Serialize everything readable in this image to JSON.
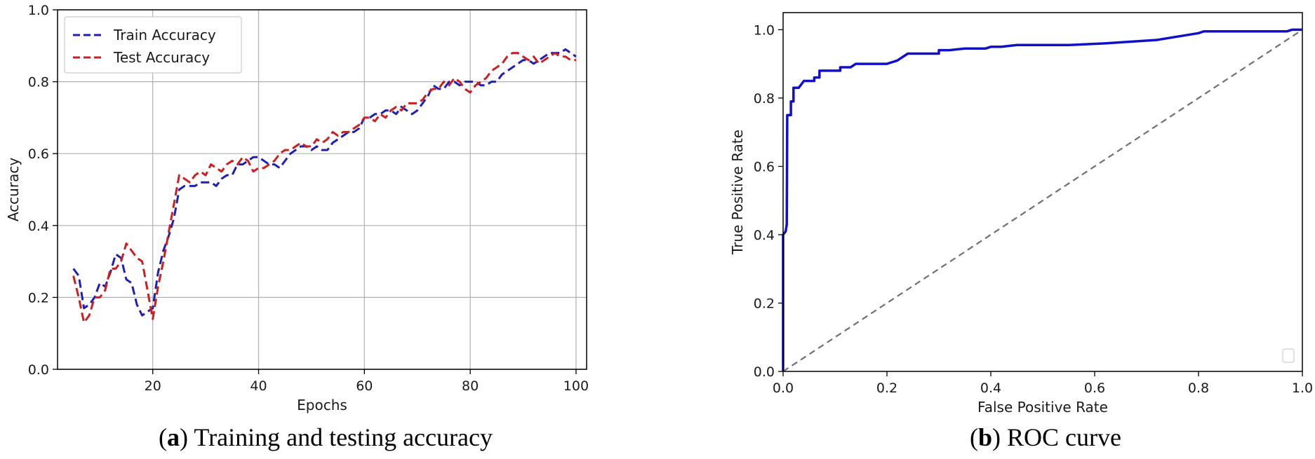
{
  "figure": {
    "caption_a": {
      "letter": "a",
      "text": " Training and testing accuracy"
    },
    "caption_b": {
      "letter": "b",
      "text": " ROC curve"
    }
  },
  "chart_data": [
    {
      "type": "line",
      "xlabel": "Epochs",
      "ylabel": "Accuracy",
      "xlim": [
        2,
        102
      ],
      "ylim": [
        0,
        1.0
      ],
      "xticks": [
        20,
        40,
        60,
        80,
        100
      ],
      "yticks": [
        0.0,
        0.2,
        0.4,
        0.6,
        0.8,
        1.0
      ],
      "grid": true,
      "legend": "top-left",
      "series": [
        {
          "name": "Train Accuracy",
          "color": "#1f1fb4",
          "style": "dashed",
          "points": [
            [
              5,
              0.28
            ],
            [
              6,
              0.26
            ],
            [
              7,
              0.17
            ],
            [
              8,
              0.18
            ],
            [
              9,
              0.2
            ],
            [
              10,
              0.24
            ],
            [
              11,
              0.23
            ],
            [
              12,
              0.27
            ],
            [
              13,
              0.32
            ],
            [
              14,
              0.31
            ],
            [
              15,
              0.25
            ],
            [
              16,
              0.24
            ],
            [
              17,
              0.18
            ],
            [
              18,
              0.15
            ],
            [
              19,
              0.16
            ],
            [
              20,
              0.17
            ],
            [
              21,
              0.27
            ],
            [
              22,
              0.33
            ],
            [
              23,
              0.37
            ],
            [
              24,
              0.42
            ],
            [
              25,
              0.5
            ],
            [
              26,
              0.51
            ],
            [
              27,
              0.51
            ],
            [
              28,
              0.51
            ],
            [
              29,
              0.52
            ],
            [
              30,
              0.52
            ],
            [
              31,
              0.52
            ],
            [
              32,
              0.51
            ],
            [
              33,
              0.53
            ],
            [
              34,
              0.54
            ],
            [
              35,
              0.54
            ],
            [
              36,
              0.57
            ],
            [
              37,
              0.57
            ],
            [
              38,
              0.58
            ],
            [
              39,
              0.59
            ],
            [
              40,
              0.59
            ],
            [
              41,
              0.58
            ],
            [
              42,
              0.57
            ],
            [
              43,
              0.57
            ],
            [
              44,
              0.56
            ],
            [
              45,
              0.58
            ],
            [
              46,
              0.6
            ],
            [
              47,
              0.61
            ],
            [
              48,
              0.62
            ],
            [
              49,
              0.62
            ],
            [
              50,
              0.61
            ],
            [
              51,
              0.62
            ],
            [
              52,
              0.61
            ],
            [
              53,
              0.61
            ],
            [
              54,
              0.63
            ],
            [
              55,
              0.64
            ],
            [
              56,
              0.65
            ],
            [
              57,
              0.66
            ],
            [
              58,
              0.66
            ],
            [
              59,
              0.67
            ],
            [
              60,
              0.7
            ],
            [
              61,
              0.7
            ],
            [
              62,
              0.71
            ],
            [
              63,
              0.71
            ],
            [
              64,
              0.72
            ],
            [
              65,
              0.72
            ],
            [
              66,
              0.71
            ],
            [
              67,
              0.73
            ],
            [
              68,
              0.72
            ],
            [
              69,
              0.71
            ],
            [
              70,
              0.72
            ],
            [
              71,
              0.74
            ],
            [
              72,
              0.76
            ],
            [
              73,
              0.79
            ],
            [
              74,
              0.78
            ],
            [
              75,
              0.78
            ],
            [
              76,
              0.8
            ],
            [
              77,
              0.8
            ],
            [
              78,
              0.79
            ],
            [
              79,
              0.8
            ],
            [
              80,
              0.8
            ],
            [
              81,
              0.8
            ],
            [
              82,
              0.79
            ],
            [
              83,
              0.79
            ],
            [
              84,
              0.8
            ],
            [
              85,
              0.8
            ],
            [
              86,
              0.82
            ],
            [
              87,
              0.83
            ],
            [
              88,
              0.84
            ],
            [
              89,
              0.85
            ],
            [
              90,
              0.86
            ],
            [
              91,
              0.86
            ],
            [
              92,
              0.85
            ],
            [
              93,
              0.86
            ],
            [
              94,
              0.87
            ],
            [
              95,
              0.88
            ],
            [
              96,
              0.88
            ],
            [
              97,
              0.88
            ],
            [
              98,
              0.89
            ],
            [
              99,
              0.88
            ],
            [
              100,
              0.87
            ]
          ]
        },
        {
          "name": "Test Accuracy",
          "color": "#cc1f1f",
          "style": "dashed",
          "points": [
            [
              5,
              0.26
            ],
            [
              6,
              0.2
            ],
            [
              7,
              0.13
            ],
            [
              8,
              0.15
            ],
            [
              9,
              0.2
            ],
            [
              10,
              0.2
            ],
            [
              11,
              0.22
            ],
            [
              12,
              0.28
            ],
            [
              13,
              0.28
            ],
            [
              14,
              0.3
            ],
            [
              15,
              0.35
            ],
            [
              16,
              0.33
            ],
            [
              17,
              0.31
            ],
            [
              18,
              0.3
            ],
            [
              19,
              0.22
            ],
            [
              20,
              0.14
            ],
            [
              21,
              0.23
            ],
            [
              22,
              0.3
            ],
            [
              23,
              0.38
            ],
            [
              24,
              0.46
            ],
            [
              25,
              0.54
            ],
            [
              26,
              0.53
            ],
            [
              27,
              0.52
            ],
            [
              28,
              0.54
            ],
            [
              29,
              0.55
            ],
            [
              30,
              0.54
            ],
            [
              31,
              0.57
            ],
            [
              32,
              0.56
            ],
            [
              33,
              0.55
            ],
            [
              34,
              0.57
            ],
            [
              35,
              0.58
            ],
            [
              36,
              0.57
            ],
            [
              37,
              0.59
            ],
            [
              38,
              0.58
            ],
            [
              39,
              0.55
            ],
            [
              40,
              0.56
            ],
            [
              41,
              0.56
            ],
            [
              42,
              0.57
            ],
            [
              43,
              0.58
            ],
            [
              44,
              0.6
            ],
            [
              45,
              0.61
            ],
            [
              46,
              0.61
            ],
            [
              47,
              0.62
            ],
            [
              48,
              0.63
            ],
            [
              49,
              0.62
            ],
            [
              50,
              0.62
            ],
            [
              51,
              0.64
            ],
            [
              52,
              0.63
            ],
            [
              53,
              0.64
            ],
            [
              54,
              0.66
            ],
            [
              55,
              0.65
            ],
            [
              56,
              0.66
            ],
            [
              57,
              0.66
            ],
            [
              58,
              0.67
            ],
            [
              59,
              0.68
            ],
            [
              60,
              0.7
            ],
            [
              61,
              0.7
            ],
            [
              62,
              0.69
            ],
            [
              63,
              0.71
            ],
            [
              64,
              0.7
            ],
            [
              65,
              0.72
            ],
            [
              66,
              0.73
            ],
            [
              67,
              0.72
            ],
            [
              68,
              0.74
            ],
            [
              69,
              0.74
            ],
            [
              70,
              0.74
            ],
            [
              71,
              0.75
            ],
            [
              72,
              0.77
            ],
            [
              73,
              0.78
            ],
            [
              74,
              0.78
            ],
            [
              75,
              0.8
            ],
            [
              76,
              0.79
            ],
            [
              77,
              0.81
            ],
            [
              78,
              0.8
            ],
            [
              79,
              0.78
            ],
            [
              80,
              0.77
            ],
            [
              81,
              0.79
            ],
            [
              82,
              0.8
            ],
            [
              83,
              0.81
            ],
            [
              84,
              0.83
            ],
            [
              85,
              0.84
            ],
            [
              86,
              0.85
            ],
            [
              87,
              0.87
            ],
            [
              88,
              0.88
            ],
            [
              89,
              0.88
            ],
            [
              90,
              0.87
            ],
            [
              91,
              0.86
            ],
            [
              92,
              0.87
            ],
            [
              93,
              0.85
            ],
            [
              94,
              0.86
            ],
            [
              95,
              0.87
            ],
            [
              96,
              0.88
            ],
            [
              97,
              0.87
            ],
            [
              98,
              0.87
            ],
            [
              99,
              0.86
            ],
            [
              100,
              0.86
            ]
          ]
        }
      ]
    },
    {
      "type": "line",
      "xlabel": "False Positive Rate",
      "ylabel": "True Positive Rate",
      "xlim": [
        0,
        1.0
      ],
      "ylim": [
        0,
        1.05
      ],
      "xticks": [
        0.0,
        0.2,
        0.4,
        0.6,
        0.8,
        1.0
      ],
      "yticks": [
        0.0,
        0.2,
        0.4,
        0.6,
        0.8,
        1.0
      ],
      "grid": false,
      "legend": "bottom-right (empty)",
      "series": [
        {
          "color": "#1010c8",
          "style": "solid",
          "points": [
            [
              0,
              0
            ],
            [
              0,
              0.4
            ],
            [
              0.005,
              0.41
            ],
            [
              0.007,
              0.43
            ],
            [
              0.008,
              0.75
            ],
            [
              0.015,
              0.75
            ],
            [
              0.015,
              0.79
            ],
            [
              0.02,
              0.79
            ],
            [
              0.02,
              0.83
            ],
            [
              0.03,
              0.83
            ],
            [
              0.035,
              0.84
            ],
            [
              0.04,
              0.85
            ],
            [
              0.06,
              0.85
            ],
            [
              0.06,
              0.86
            ],
            [
              0.07,
              0.86
            ],
            [
              0.07,
              0.88
            ],
            [
              0.11,
              0.88
            ],
            [
              0.11,
              0.89
            ],
            [
              0.13,
              0.89
            ],
            [
              0.14,
              0.9
            ],
            [
              0.2,
              0.9
            ],
            [
              0.22,
              0.91
            ],
            [
              0.24,
              0.93
            ],
            [
              0.26,
              0.93
            ],
            [
              0.3,
              0.93
            ],
            [
              0.3,
              0.94
            ],
            [
              0.32,
              0.94
            ],
            [
              0.35,
              0.945
            ],
            [
              0.39,
              0.945
            ],
            [
              0.4,
              0.95
            ],
            [
              0.42,
              0.95
            ],
            [
              0.45,
              0.955
            ],
            [
              0.55,
              0.955
            ],
            [
              0.62,
              0.96
            ],
            [
              0.72,
              0.97
            ],
            [
              0.8,
              0.99
            ],
            [
              0.81,
              0.995
            ],
            [
              0.97,
              0.995
            ],
            [
              0.98,
              1.0
            ],
            [
              1.0,
              1.0
            ]
          ]
        },
        {
          "color": "#707070",
          "style": "dashed",
          "points": [
            [
              0,
              0
            ],
            [
              1,
              1
            ]
          ]
        }
      ]
    }
  ]
}
